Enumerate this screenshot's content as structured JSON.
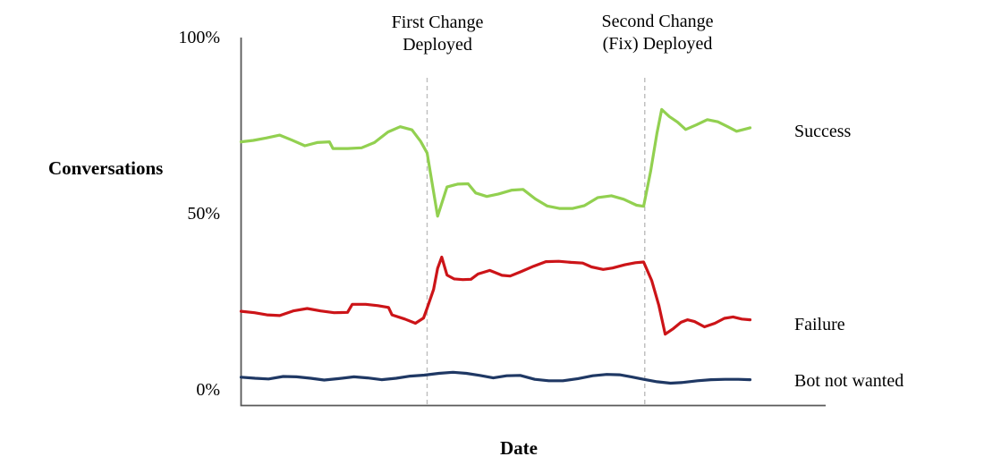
{
  "figure": {
    "background": "#ffffff"
  },
  "colors": {
    "axis": "#595959",
    "dashed_line": "#bdbdbd",
    "text": "#000000"
  },
  "chart_data": {
    "type": "line",
    "title": "",
    "xlabel": "Date",
    "ylabel": "Conversations",
    "grid": false,
    "legend_position": "right-of-line-ends",
    "x_axis": {
      "label": "Date",
      "tick_labels_shown": false,
      "range_rel": [
        0,
        100
      ]
    },
    "y_axis": {
      "label": "Conversations",
      "tick_labels": [
        "100%",
        "50%",
        "0%"
      ],
      "tick_values": [
        100,
        50,
        0
      ],
      "range": [
        0,
        100
      ],
      "unit": "%"
    },
    "annotations": [
      {
        "lines": [
          "First Change",
          "Deployed"
        ],
        "x": 31.8,
        "style": "dashed-vertical-line"
      },
      {
        "lines": [
          "Second Change",
          "(Fix) Deployed"
        ],
        "x": 69.0,
        "style": "dashed-vertical-line"
      }
    ],
    "series": [
      {
        "name": "Success",
        "color": "#92d050",
        "points": [
          [
            0,
            70.4
          ],
          [
            2.1,
            70.8
          ],
          [
            4.3,
            71.5
          ],
          [
            6.6,
            72.3
          ],
          [
            8.7,
            70.9
          ],
          [
            10.9,
            69.3
          ],
          [
            13,
            70.2
          ],
          [
            15.1,
            70.4
          ],
          [
            15.7,
            68.5
          ],
          [
            18.2,
            68.5
          ],
          [
            20.6,
            68.7
          ],
          [
            22.8,
            70.2
          ],
          [
            25.1,
            73.2
          ],
          [
            27.2,
            74.7
          ],
          [
            29.2,
            73.8
          ],
          [
            30.7,
            70.5
          ],
          [
            31.8,
            67.2
          ],
          [
            33.6,
            49.3
          ],
          [
            35.2,
            57.6
          ],
          [
            37,
            58.4
          ],
          [
            38.8,
            58.5
          ],
          [
            40.1,
            55.9
          ],
          [
            42,
            54.9
          ],
          [
            44,
            55.6
          ],
          [
            46.3,
            56.7
          ],
          [
            48.2,
            56.9
          ],
          [
            50.3,
            54.2
          ],
          [
            52.3,
            52.2
          ],
          [
            54.4,
            51.5
          ],
          [
            56.7,
            51.5
          ],
          [
            58.7,
            52.3
          ],
          [
            61,
            54.6
          ],
          [
            63.3,
            55.1
          ],
          [
            65.4,
            54.1
          ],
          [
            67.6,
            52.4
          ],
          [
            68.8,
            52.1
          ],
          [
            70,
            62
          ],
          [
            71.1,
            73
          ],
          [
            71.9,
            79.6
          ],
          [
            73.2,
            77.6
          ],
          [
            74.6,
            76
          ],
          [
            76,
            73.9
          ],
          [
            77.8,
            75.2
          ],
          [
            79.7,
            76.7
          ],
          [
            81.5,
            76.1
          ],
          [
            83.2,
            74.7
          ],
          [
            84.7,
            73.4
          ],
          [
            85.9,
            73.9
          ],
          [
            87,
            74.4
          ]
        ]
      },
      {
        "name": "Failure",
        "color": "#cc1418",
        "points": [
          [
            0,
            22.3
          ],
          [
            2.3,
            21.9
          ],
          [
            4.4,
            21.3
          ],
          [
            6.6,
            21.1
          ],
          [
            8.9,
            22.4
          ],
          [
            11.3,
            23.1
          ],
          [
            13.6,
            22.4
          ],
          [
            15.9,
            21.9
          ],
          [
            18.2,
            22
          ],
          [
            19,
            24.3
          ],
          [
            21.3,
            24.3
          ],
          [
            23.4,
            23.9
          ],
          [
            25.2,
            23.4
          ],
          [
            25.8,
            21.3
          ],
          [
            28,
            20.1
          ],
          [
            29.8,
            18.9
          ],
          [
            31.2,
            20.4
          ],
          [
            31.8,
            23.2
          ],
          [
            32.9,
            28.5
          ],
          [
            33.6,
            34.5
          ],
          [
            34.3,
            37.7
          ],
          [
            35.2,
            32.6
          ],
          [
            36.4,
            31.5
          ],
          [
            37.9,
            31.3
          ],
          [
            39.3,
            31.4
          ],
          [
            40.5,
            32.9
          ],
          [
            42.5,
            33.9
          ],
          [
            44.6,
            32.5
          ],
          [
            46,
            32.3
          ],
          [
            47.9,
            33.6
          ],
          [
            50,
            35.1
          ],
          [
            52.1,
            36.4
          ],
          [
            54.3,
            36.5
          ],
          [
            56.4,
            36.2
          ],
          [
            58.4,
            36
          ],
          [
            59.9,
            34.9
          ],
          [
            61.9,
            34.2
          ],
          [
            63.5,
            34.6
          ],
          [
            65.6,
            35.5
          ],
          [
            67.4,
            36.1
          ],
          [
            68.8,
            36.3
          ],
          [
            70.2,
            31
          ],
          [
            71.4,
            24
          ],
          [
            72.5,
            15.8
          ],
          [
            73.9,
            17.4
          ],
          [
            75.2,
            19.2
          ],
          [
            76.3,
            19.9
          ],
          [
            77.5,
            19.4
          ],
          [
            79.2,
            17.9
          ],
          [
            81,
            18.9
          ],
          [
            82.6,
            20.3
          ],
          [
            84.1,
            20.7
          ],
          [
            85.6,
            20.1
          ],
          [
            87,
            19.9
          ]
        ]
      },
      {
        "name": "Bot not wanted",
        "color": "#1f3864",
        "points": [
          [
            0,
            3.6
          ],
          [
            2.4,
            3.3
          ],
          [
            4.7,
            3.1
          ],
          [
            7.2,
            3.8
          ],
          [
            9.5,
            3.7
          ],
          [
            11.9,
            3.3
          ],
          [
            14.2,
            2.8
          ],
          [
            16.7,
            3.2
          ],
          [
            19.3,
            3.7
          ],
          [
            21.6,
            3.4
          ],
          [
            24,
            2.9
          ],
          [
            26.5,
            3.3
          ],
          [
            28.9,
            3.9
          ],
          [
            31.3,
            4.2
          ],
          [
            33.8,
            4.7
          ],
          [
            36.2,
            5
          ],
          [
            38.5,
            4.7
          ],
          [
            40.8,
            4.1
          ],
          [
            43.1,
            3.4
          ],
          [
            45.4,
            4
          ],
          [
            47.7,
            4.1
          ],
          [
            50.2,
            3
          ],
          [
            52.6,
            2.6
          ],
          [
            55,
            2.6
          ],
          [
            57.6,
            3.2
          ],
          [
            60.1,
            4
          ],
          [
            62.5,
            4.4
          ],
          [
            64.7,
            4.3
          ],
          [
            66.7,
            3.7
          ],
          [
            68.8,
            3
          ],
          [
            71.1,
            2.3
          ],
          [
            73.4,
            1.9
          ],
          [
            75.5,
            2.1
          ],
          [
            78,
            2.6
          ],
          [
            80.3,
            2.9
          ],
          [
            82.7,
            3
          ],
          [
            85,
            3
          ],
          [
            87,
            2.9
          ]
        ]
      }
    ]
  }
}
